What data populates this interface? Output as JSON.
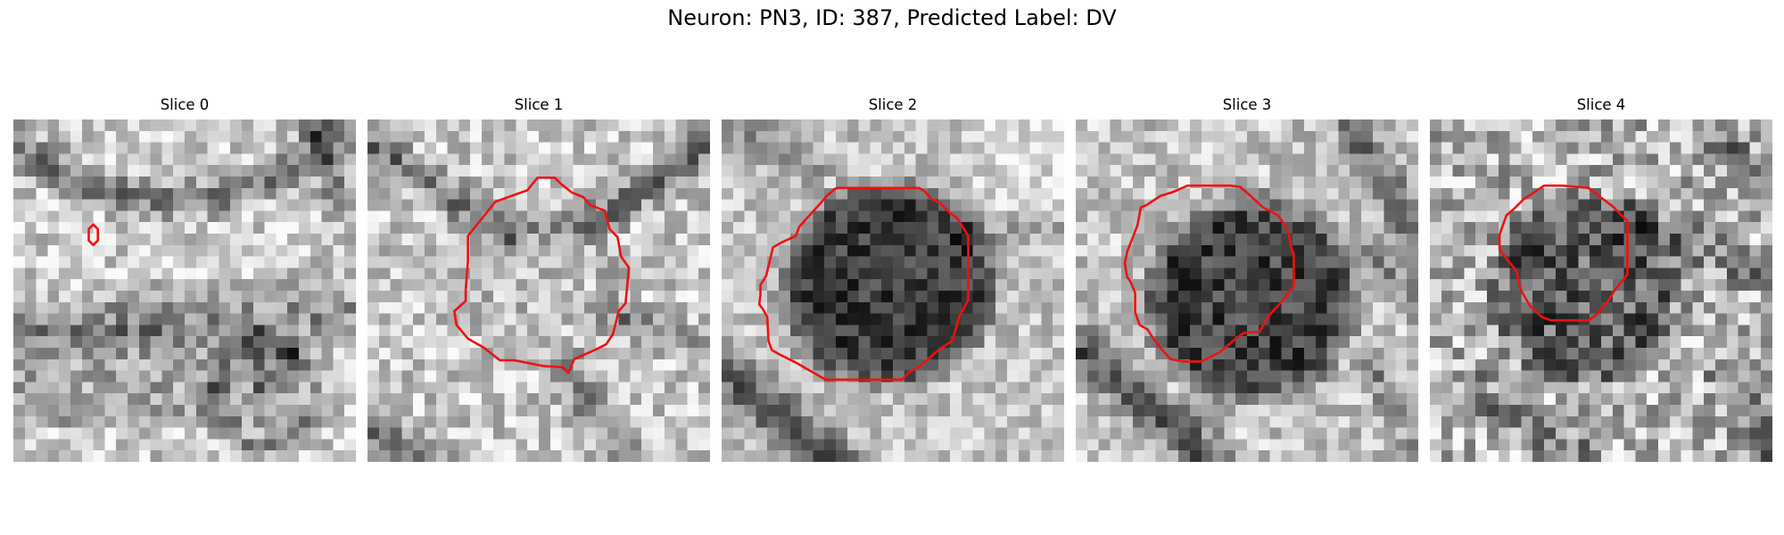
{
  "title": "Neuron: PN3, ID: 387, Predicted Label: DV",
  "colors": {
    "contour": "#ee1111"
  },
  "panels": [
    {
      "title": "Slice 0"
    },
    {
      "title": "Slice 1"
    },
    {
      "title": "Slice 2"
    },
    {
      "title": "Slice 3"
    },
    {
      "title": "Slice 4"
    }
  ]
}
